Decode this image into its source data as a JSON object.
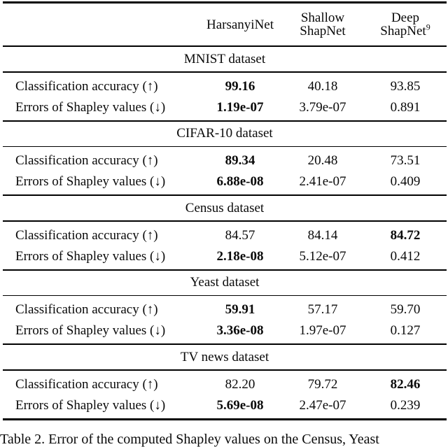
{
  "table": {
    "header": {
      "col1": "HarsanyiNet",
      "col2_line1": "Shallow",
      "col2_line2": "ShapNet",
      "col3_line1": "Deep",
      "col3_line2": "ShapNet",
      "col3_footnote": "9"
    },
    "row_labels": {
      "accuracy": "Classification accuracy (↑)",
      "errors": "Errors of Shapley values (↓)"
    },
    "sections": [
      {
        "dataset": "MNIST dataset",
        "accuracy": [
          "99.16",
          "40.18",
          "93.85"
        ],
        "accuracy_bold": [
          true,
          false,
          false
        ],
        "errors": [
          "1.19e-07",
          "3.79e-07",
          "0.891"
        ],
        "errors_bold": [
          true,
          false,
          false
        ]
      },
      {
        "dataset": "CIFAR-10 dataset",
        "accuracy": [
          "89.34",
          "20.48",
          "73.51"
        ],
        "accuracy_bold": [
          true,
          false,
          false
        ],
        "errors": [
          "6.88e-08",
          "2.41e-07",
          "0.409"
        ],
        "errors_bold": [
          true,
          false,
          false
        ]
      },
      {
        "dataset": "Census dataset",
        "accuracy": [
          "84.57",
          "84.14",
          "84.72"
        ],
        "accuracy_bold": [
          false,
          false,
          true
        ],
        "errors": [
          "2.18e-08",
          "5.12e-07",
          "0.412"
        ],
        "errors_bold": [
          true,
          false,
          false
        ]
      },
      {
        "dataset": "Yeast dataset",
        "accuracy": [
          "59.91",
          "57.17",
          "59.70"
        ],
        "accuracy_bold": [
          true,
          false,
          false
        ],
        "errors": [
          "3.36e-08",
          "1.97e-07",
          "0.127"
        ],
        "errors_bold": [
          true,
          false,
          false
        ]
      },
      {
        "dataset": "TV news dataset",
        "accuracy": [
          "82.20",
          "79.72",
          "82.46"
        ],
        "accuracy_bold": [
          false,
          false,
          true
        ],
        "errors": [
          "5.69e-08",
          "2.47e-07",
          "0.239"
        ],
        "errors_bold": [
          true,
          false,
          false
        ]
      }
    ]
  },
  "caption": "Table 2. Error of the computed Shapley values on the Census, Yeast"
}
